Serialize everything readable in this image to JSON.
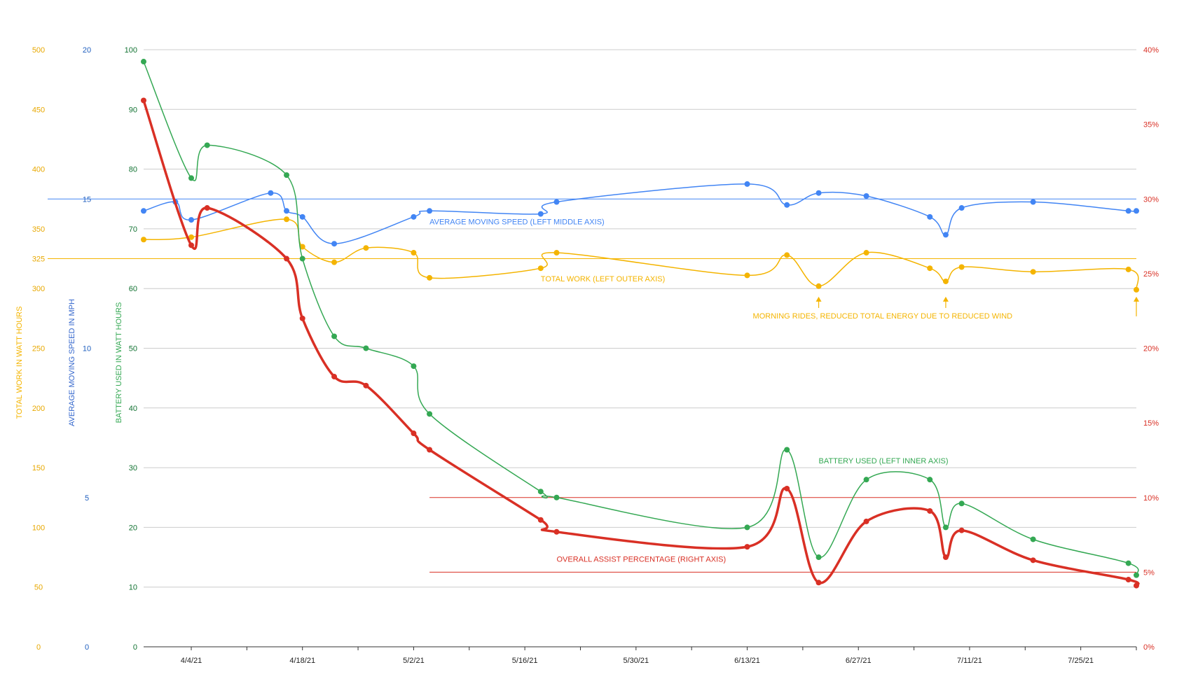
{
  "chart_data": {
    "type": "line",
    "x_axis": {
      "type": "date",
      "ticks": [
        "4/4/21",
        "4/18/21",
        "5/2/21",
        "5/16/21",
        "5/30/21",
        "6/13/21",
        "6/27/21",
        "7/11/21",
        "7/25/21"
      ],
      "range": [
        "3/29/21",
        "8/1/21"
      ]
    },
    "axes": {
      "left_outer": {
        "label": "TOTAL WORK IN WATT HOURS",
        "range": [
          0,
          500
        ],
        "ticks": [
          "0",
          "50",
          "100",
          "150",
          "200",
          "250",
          "300",
          "325",
          "350",
          "400",
          "450",
          "500"
        ],
        "color": "#F4B400"
      },
      "left_middle": {
        "label": "AVERAGE MOVING SPEED IN MPH",
        "range": [
          0,
          20
        ],
        "ticks": [
          "0",
          "5",
          "10",
          "15",
          "20"
        ],
        "color": "#1F5FBF"
      },
      "left_inner": {
        "label": "BATTERY USED IN WATT HOURS",
        "range": [
          0,
          100
        ],
        "ticks": [
          "0",
          "10",
          "20",
          "30",
          "40",
          "50",
          "60",
          "70",
          "80",
          "90",
          "100"
        ],
        "color": "#137333"
      },
      "right": {
        "label": "",
        "range": [
          0,
          40
        ],
        "ticks": [
          "0%",
          "5%",
          "10%",
          "15%",
          "20%",
          "25%",
          "30%",
          "35%",
          "40%"
        ],
        "color": "#D93025"
      }
    },
    "grid": true,
    "series": [
      {
        "name": "AVERAGE MOVING SPEED (LEFT MIDDLE AXIS)",
        "axis": "left_middle",
        "color": "#4285F4",
        "points": [
          [
            "3/29/21",
            14.6
          ],
          [
            "4/2/21",
            14.9
          ],
          [
            "4/4/21",
            14.3
          ],
          [
            "4/14/21",
            15.2
          ],
          [
            "4/16/21",
            14.6
          ],
          [
            "4/18/21",
            14.4
          ],
          [
            "4/22/21",
            13.5
          ],
          [
            "5/2/21",
            14.4
          ],
          [
            "5/4/21",
            14.6
          ],
          [
            "5/18/21",
            14.5
          ],
          [
            "5/20/21",
            14.9
          ],
          [
            "6/13/21",
            15.5
          ],
          [
            "6/18/21",
            14.8
          ],
          [
            "6/22/21",
            15.2
          ],
          [
            "6/28/21",
            15.1
          ],
          [
            "7/6/21",
            14.4
          ],
          [
            "7/8/21",
            13.8
          ],
          [
            "7/10/21",
            14.7
          ],
          [
            "7/19/21",
            14.9
          ],
          [
            "7/31/21",
            14.6
          ],
          [
            "8/1/21",
            14.6
          ]
        ]
      },
      {
        "name": "TOTAL WORK (LEFT OUTER AXIS)",
        "axis": "left_outer",
        "color": "#F4B400",
        "points": [
          [
            "3/29/21",
            341
          ],
          [
            "4/4/21",
            343
          ],
          [
            "4/16/21",
            358
          ],
          [
            "4/18/21",
            335
          ],
          [
            "4/22/21",
            322
          ],
          [
            "4/26/21",
            334
          ],
          [
            "5/2/21",
            330
          ],
          [
            "5/4/21",
            309
          ],
          [
            "5/18/21",
            317
          ],
          [
            "5/20/21",
            330
          ],
          [
            "6/13/21",
            311
          ],
          [
            "6/18/21",
            328
          ],
          [
            "6/22/21",
            302
          ],
          [
            "6/28/21",
            330
          ],
          [
            "7/6/21",
            317
          ],
          [
            "7/8/21",
            306
          ],
          [
            "7/10/21",
            318
          ],
          [
            "7/19/21",
            314
          ],
          [
            "7/31/21",
            316
          ],
          [
            "8/1/21",
            299
          ]
        ]
      },
      {
        "name": "BATTERY USED (LEFT INNER AXIS)",
        "axis": "left_inner",
        "color": "#34A853",
        "points": [
          [
            "3/29/21",
            98
          ],
          [
            "4/4/21",
            78.5
          ],
          [
            "4/6/21",
            84
          ],
          [
            "4/16/21",
            79
          ],
          [
            "4/18/21",
            65
          ],
          [
            "4/22/21",
            52
          ],
          [
            "4/26/21",
            50
          ],
          [
            "5/2/21",
            47
          ],
          [
            "5/4/21",
            39
          ],
          [
            "5/18/21",
            26
          ],
          [
            "5/20/21",
            25
          ],
          [
            "6/13/21",
            20
          ],
          [
            "6/18/21",
            33
          ],
          [
            "6/22/21",
            15
          ],
          [
            "6/28/21",
            28
          ],
          [
            "7/6/21",
            28
          ],
          [
            "7/8/21",
            20
          ],
          [
            "7/10/21",
            24
          ],
          [
            "7/19/21",
            18
          ],
          [
            "7/31/21",
            14
          ],
          [
            "8/1/21",
            12
          ]
        ]
      },
      {
        "name": "OVERALL ASSIST PERCENTAGE (RIGHT AXIS)",
        "axis": "right",
        "color": "#D93025",
        "points": [
          [
            "3/29/21",
            36.6
          ],
          [
            "4/4/21",
            26.9
          ],
          [
            "4/6/21",
            29.4
          ],
          [
            "4/16/21",
            26.0
          ],
          [
            "4/18/21",
            22.0
          ],
          [
            "4/22/21",
            18.1
          ],
          [
            "4/26/21",
            17.5
          ],
          [
            "5/2/21",
            14.3
          ],
          [
            "5/4/21",
            13.2
          ],
          [
            "5/18/21",
            8.5
          ],
          [
            "5/20/21",
            7.7
          ],
          [
            "6/13/21",
            6.7
          ],
          [
            "6/18/21",
            10.6
          ],
          [
            "6/22/21",
            4.3
          ],
          [
            "6/28/21",
            8.4
          ],
          [
            "7/6/21",
            9.1
          ],
          [
            "7/8/21",
            6.0
          ],
          [
            "7/10/21",
            7.8
          ],
          [
            "7/19/21",
            5.8
          ],
          [
            "7/31/21",
            4.5
          ],
          [
            "8/1/21",
            4.1
          ]
        ]
      }
    ],
    "reference_lines": [
      {
        "axis": "left_middle",
        "value": 15,
        "color": "#4285F4",
        "from": "start",
        "to": "end"
      },
      {
        "axis": "left_outer",
        "value": 325,
        "color": "#F4B400",
        "from": "start",
        "to": "end"
      },
      {
        "axis": "right",
        "value": 10,
        "color": "#D93025",
        "from": "5/4/21",
        "to": "end"
      },
      {
        "axis": "right",
        "value": 5,
        "color": "#D93025",
        "from": "5/4/21",
        "to": "end"
      }
    ],
    "annotations": [
      {
        "text": "MORNING RIDES, REDUCED TOTAL ENERGY DUE TO REDUCED WIND",
        "color": "#F4B400",
        "arrows_to": [
          "6/22/21",
          "7/8/21",
          "8/1/21"
        ]
      }
    ]
  }
}
